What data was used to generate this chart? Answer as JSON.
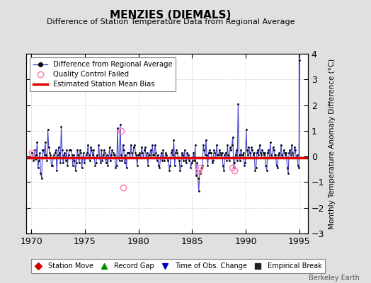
{
  "title": "MENZIES (DIEMALS)",
  "subtitle": "Difference of Station Temperature Data from Regional Average",
  "ylabel_right": "Monthly Temperature Anomaly Difference (°C)",
  "xlim": [
    1969.5,
    1995.8
  ],
  "ylim": [
    -3,
    4
  ],
  "yticks": [
    -3,
    -2,
    -1,
    0,
    1,
    2,
    3,
    4
  ],
  "xticks": [
    1970,
    1975,
    1980,
    1985,
    1990,
    1995
  ],
  "bias_value": -0.05,
  "background_color": "#e0e0e0",
  "plot_bg_color": "#ffffff",
  "line_color": "#4444cc",
  "marker_color": "#000000",
  "bias_color": "#dd0000",
  "qc_color": "#ff88bb",
  "watermark": "Berkeley Earth",
  "times": [
    1970.04,
    1970.12,
    1970.21,
    1970.29,
    1970.37,
    1970.46,
    1970.54,
    1970.62,
    1970.71,
    1970.79,
    1970.87,
    1970.96,
    1971.04,
    1971.12,
    1971.21,
    1971.29,
    1971.37,
    1971.46,
    1971.54,
    1971.62,
    1971.71,
    1971.79,
    1971.87,
    1971.96,
    1972.04,
    1972.12,
    1972.21,
    1972.29,
    1972.37,
    1972.46,
    1972.54,
    1972.62,
    1972.71,
    1972.79,
    1972.87,
    1972.96,
    1973.04,
    1973.12,
    1973.21,
    1973.29,
    1973.37,
    1973.46,
    1973.54,
    1973.62,
    1973.71,
    1973.79,
    1973.87,
    1973.96,
    1974.04,
    1974.12,
    1974.21,
    1974.29,
    1974.37,
    1974.46,
    1974.54,
    1974.62,
    1974.71,
    1974.79,
    1974.87,
    1974.96,
    1975.04,
    1975.12,
    1975.21,
    1975.29,
    1975.37,
    1975.46,
    1975.54,
    1975.62,
    1975.71,
    1975.79,
    1975.87,
    1975.96,
    1976.04,
    1976.12,
    1976.21,
    1976.29,
    1976.37,
    1976.46,
    1976.54,
    1976.62,
    1976.71,
    1976.79,
    1976.87,
    1976.96,
    1977.04,
    1977.12,
    1977.21,
    1977.29,
    1977.37,
    1977.46,
    1977.54,
    1977.62,
    1977.71,
    1977.79,
    1977.87,
    1977.96,
    1978.04,
    1978.12,
    1978.21,
    1978.29,
    1978.37,
    1978.46,
    1978.54,
    1978.62,
    1978.71,
    1978.79,
    1978.87,
    1978.96,
    1979.04,
    1979.12,
    1979.21,
    1979.29,
    1979.37,
    1979.46,
    1979.54,
    1979.62,
    1979.71,
    1979.79,
    1979.87,
    1979.96,
    1980.04,
    1980.12,
    1980.21,
    1980.29,
    1980.37,
    1980.46,
    1980.54,
    1980.62,
    1980.71,
    1980.79,
    1980.87,
    1980.96,
    1981.04,
    1981.12,
    1981.21,
    1981.29,
    1981.37,
    1981.46,
    1981.54,
    1981.62,
    1981.71,
    1981.79,
    1981.87,
    1981.96,
    1982.04,
    1982.12,
    1982.21,
    1982.29,
    1982.37,
    1982.46,
    1982.54,
    1982.62,
    1982.71,
    1982.79,
    1982.87,
    1982.96,
    1983.04,
    1983.12,
    1983.21,
    1983.29,
    1983.37,
    1983.46,
    1983.54,
    1983.62,
    1983.71,
    1983.79,
    1983.87,
    1983.96,
    1984.04,
    1984.12,
    1984.21,
    1984.29,
    1984.37,
    1984.46,
    1984.54,
    1984.62,
    1984.71,
    1984.79,
    1984.87,
    1984.96,
    1985.04,
    1985.12,
    1985.21,
    1985.29,
    1985.37,
    1985.46,
    1985.54,
    1985.62,
    1985.71,
    1985.79,
    1985.87,
    1985.96,
    1986.04,
    1986.12,
    1986.21,
    1986.29,
    1986.37,
    1986.46,
    1986.54,
    1986.62,
    1986.71,
    1986.79,
    1986.87,
    1986.96,
    1987.04,
    1987.12,
    1987.21,
    1987.29,
    1987.37,
    1987.46,
    1987.54,
    1987.62,
    1987.71,
    1987.79,
    1987.87,
    1987.96,
    1988.04,
    1988.12,
    1988.21,
    1988.29,
    1988.37,
    1988.46,
    1988.54,
    1988.62,
    1988.71,
    1988.79,
    1988.87,
    1988.96,
    1989.04,
    1989.12,
    1989.21,
    1989.29,
    1989.37,
    1989.46,
    1989.54,
    1989.62,
    1989.71,
    1989.79,
    1989.87,
    1989.96,
    1990.04,
    1990.12,
    1990.21,
    1990.29,
    1990.37,
    1990.46,
    1990.54,
    1990.62,
    1990.71,
    1990.79,
    1990.87,
    1990.96,
    1991.04,
    1991.12,
    1991.21,
    1991.29,
    1991.37,
    1991.46,
    1991.54,
    1991.62,
    1991.71,
    1991.79,
    1991.87,
    1991.96,
    1992.04,
    1992.12,
    1992.21,
    1992.29,
    1992.37,
    1992.46,
    1992.54,
    1992.62,
    1992.71,
    1992.79,
    1992.87,
    1992.96,
    1993.04,
    1993.12,
    1993.21,
    1993.29,
    1993.37,
    1993.46,
    1993.54,
    1993.62,
    1993.71,
    1993.79,
    1993.87,
    1993.96,
    1994.04,
    1994.12,
    1994.21,
    1994.29,
    1994.37,
    1994.46,
    1994.54,
    1994.62,
    1994.71,
    1994.79,
    1994.87,
    1994.96,
    1995.04
  ],
  "values": [
    0.15,
    -0.05,
    -0.15,
    0.25,
    -0.1,
    0.05,
    0.55,
    -0.45,
    -0.15,
    0.15,
    -0.65,
    -0.85,
    0.25,
    0.25,
    0.05,
    0.55,
    0.05,
    -0.15,
    1.05,
    0.35,
    0.15,
    0.05,
    -0.35,
    -0.35,
    -0.05,
    0.05,
    0.15,
    0.25,
    -0.55,
    0.05,
    0.35,
    0.15,
    -0.25,
    1.15,
    0.25,
    -0.25,
    0.05,
    0.15,
    -0.15,
    0.25,
    -0.35,
    0.05,
    0.25,
    0.25,
    0.25,
    0.05,
    -0.35,
    0.05,
    -0.15,
    -0.55,
    -0.25,
    0.25,
    0.05,
    -0.25,
    0.25,
    0.15,
    -0.45,
    -0.05,
    0.15,
    -0.25,
    -0.05,
    0.05,
    0.15,
    0.45,
    0.05,
    -0.15,
    0.35,
    0.25,
    0.05,
    0.25,
    -0.05,
    -0.35,
    -0.25,
    0.05,
    -0.05,
    0.45,
    -0.05,
    -0.25,
    0.25,
    -0.15,
    0.05,
    0.25,
    0.15,
    -0.25,
    0.05,
    -0.35,
    -0.05,
    0.35,
    -0.15,
    0.05,
    0.25,
    0.15,
    0.05,
    0.05,
    -0.45,
    -0.35,
    1.1,
    -0.05,
    -0.15,
    1.25,
    0.05,
    -0.15,
    0.45,
    0.25,
    -0.25,
    0.05,
    -0.45,
    0.15,
    0.15,
    0.15,
    -0.05,
    0.45,
    0.15,
    -0.05,
    0.35,
    0.45,
    0.15,
    0.05,
    -0.35,
    0.05,
    0.05,
    0.15,
    -0.05,
    0.35,
    0.15,
    -0.05,
    0.25,
    0.35,
    -0.05,
    0.15,
    -0.35,
    0.05,
    0.05,
    0.25,
    -0.05,
    0.45,
    0.05,
    0.05,
    0.45,
    0.15,
    -0.15,
    0.05,
    -0.35,
    -0.45,
    -0.05,
    0.15,
    -0.15,
    0.25,
    -0.15,
    -0.05,
    0.15,
    0.05,
    -0.15,
    -0.05,
    -0.55,
    -0.35,
    0.15,
    0.25,
    0.05,
    0.65,
    -0.35,
    0.15,
    0.25,
    0.15,
    -0.05,
    -0.15,
    -0.55,
    -0.35,
    0.15,
    0.05,
    -0.15,
    0.25,
    -0.15,
    -0.25,
    0.15,
    0.05,
    -0.15,
    -0.05,
    -0.45,
    -0.25,
    -0.15,
    0.15,
    -0.15,
    0.45,
    -0.75,
    -0.25,
    -0.85,
    -1.35,
    -0.55,
    -0.65,
    -0.45,
    -0.35,
    0.45,
    0.25,
    0.05,
    0.65,
    0.05,
    -0.35,
    0.15,
    0.25,
    0.15,
    0.15,
    -0.25,
    -0.15,
    0.25,
    0.15,
    -0.05,
    0.45,
    0.05,
    0.05,
    0.25,
    0.15,
    0.05,
    0.15,
    -0.35,
    -0.55,
    0.05,
    0.15,
    -0.15,
    0.45,
    0.05,
    -0.15,
    0.35,
    0.25,
    0.45,
    0.75,
    -0.45,
    -0.25,
    0.05,
    0.25,
    -0.15,
    2.05,
    0.05,
    -0.15,
    0.25,
    0.05,
    0.05,
    0.15,
    -0.35,
    -0.25,
    1.05,
    0.25,
    0.05,
    0.35,
    0.15,
    -0.05,
    0.35,
    0.25,
    0.05,
    0.15,
    -0.55,
    -0.45,
    0.15,
    0.25,
    0.05,
    0.45,
    0.15,
    0.05,
    0.25,
    0.15,
    0.05,
    0.15,
    -0.35,
    -0.55,
    0.15,
    0.25,
    -0.05,
    0.55,
    0.05,
    -0.05,
    0.35,
    0.25,
    0.05,
    0.05,
    -0.35,
    -0.45,
    0.05,
    0.15,
    -0.05,
    0.45,
    0.05,
    -0.05,
    0.25,
    0.15,
    0.05,
    0.15,
    -0.45,
    -0.65,
    0.15,
    0.25,
    0.05,
    0.45,
    0.15,
    -0.05,
    0.35,
    0.25,
    -0.05,
    0.05,
    -0.35,
    -0.45,
    3.75
  ],
  "qc_failed_times": [
    1970.04,
    1978.37,
    1978.54,
    1985.54,
    1985.71,
    1988.71,
    1988.96
  ],
  "qc_failed_values": [
    0.15,
    1.0,
    -1.2,
    -0.55,
    -0.45,
    -0.45,
    -0.55
  ],
  "legend_bottom": [
    "Station Move",
    "Record Gap",
    "Time of Obs. Change",
    "Empirical Break"
  ],
  "legend_bottom_colors": [
    "#cc0000",
    "#008800",
    "#0000cc",
    "#222222"
  ],
  "legend_bottom_markers": [
    "D",
    "^",
    "v",
    "s"
  ]
}
